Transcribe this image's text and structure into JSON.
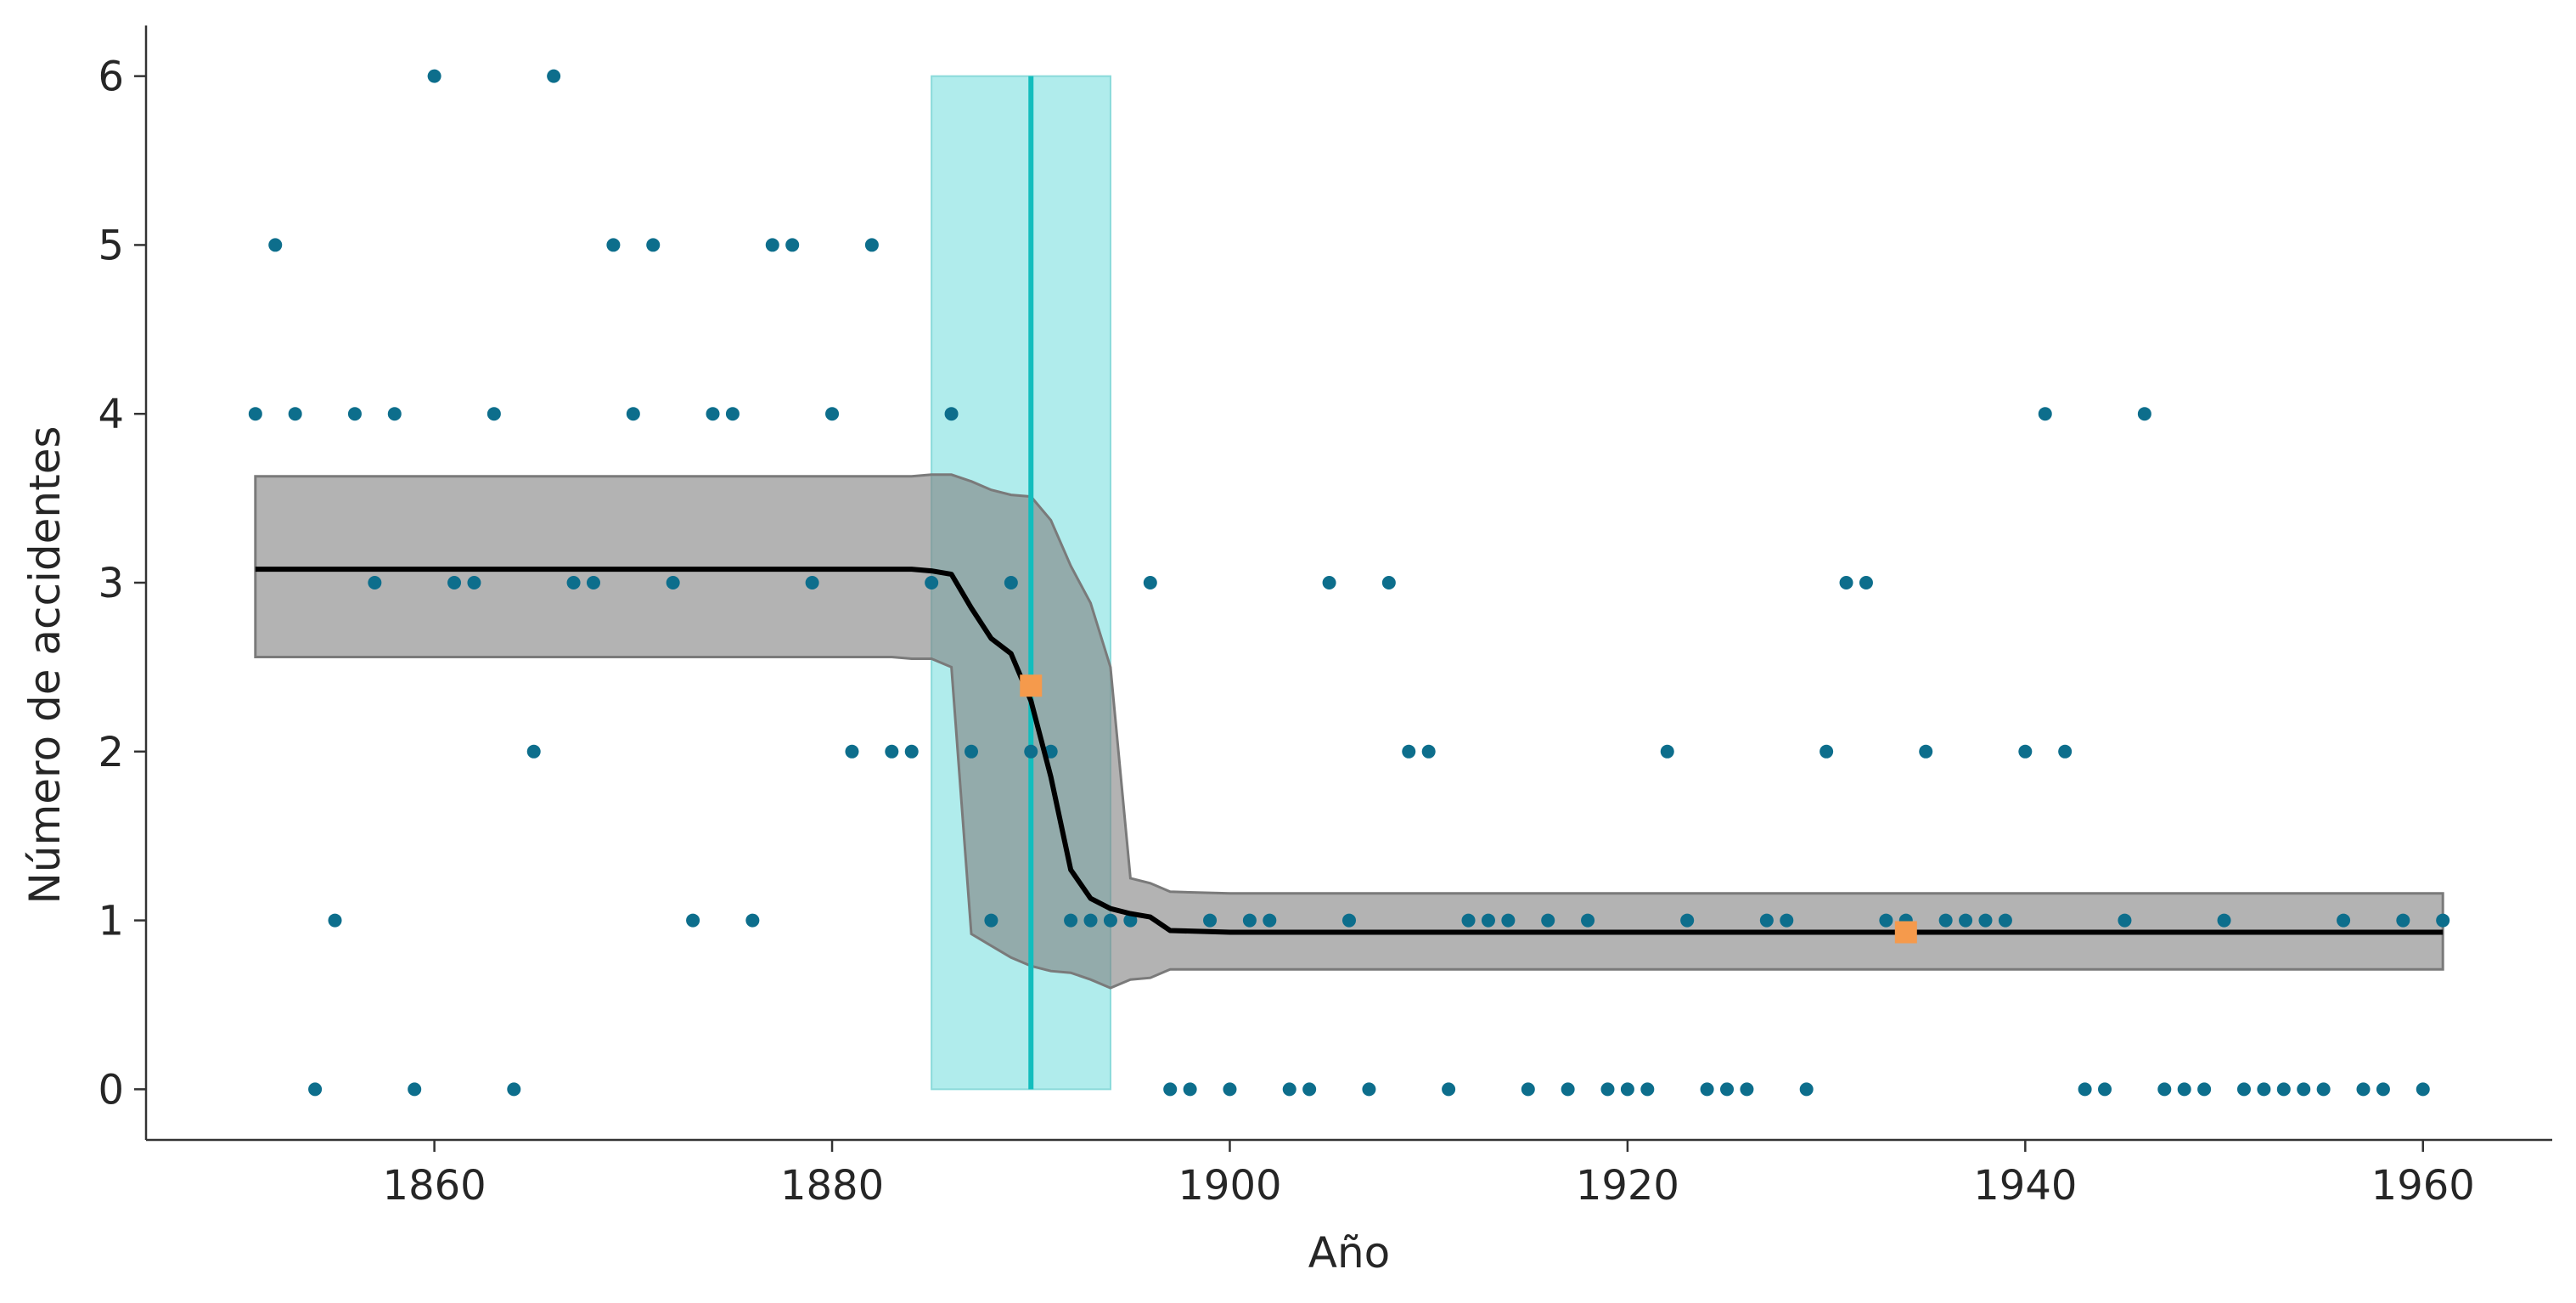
{
  "chart_data": {
    "type": "scatter",
    "title": "",
    "xlabel": "Año",
    "ylabel": "Número de accidentes",
    "xlim": [
      1845.5,
      1966.5
    ],
    "ylim": [
      -0.3,
      6.3
    ],
    "xticks": [
      1860,
      1880,
      1900,
      1920,
      1940,
      1960
    ],
    "yticks": [
      0,
      1,
      2,
      3,
      4,
      5,
      6
    ],
    "grid": false,
    "legend": "none",
    "colors": {
      "points": "#0d6e8c",
      "mean_line": "#000000",
      "band": "#b3b3b3",
      "band_edge": "#7a7a7a",
      "switch_region": "#b0ecec",
      "switch_line": "#12bdbd",
      "markers": "#f59a4c"
    },
    "points": {
      "x": [
        1851,
        1852,
        1853,
        1854,
        1855,
        1856,
        1857,
        1858,
        1859,
        1860,
        1861,
        1862,
        1863,
        1864,
        1865,
        1866,
        1867,
        1868,
        1869,
        1870,
        1871,
        1872,
        1873,
        1874,
        1875,
        1876,
        1877,
        1878,
        1879,
        1880,
        1881,
        1882,
        1883,
        1884,
        1885,
        1886,
        1887,
        1888,
        1889,
        1890,
        1891,
        1892,
        1893,
        1894,
        1895,
        1896,
        1897,
        1898,
        1899,
        1900,
        1901,
        1902,
        1903,
        1904,
        1905,
        1906,
        1907,
        1908,
        1909,
        1910,
        1911,
        1912,
        1913,
        1914,
        1915,
        1916,
        1917,
        1918,
        1919,
        1920,
        1921,
        1922,
        1923,
        1924,
        1925,
        1926,
        1927,
        1928,
        1929,
        1930,
        1931,
        1932,
        1933,
        1934,
        1935,
        1936,
        1937,
        1938,
        1939,
        1940,
        1941,
        1942,
        1943,
        1944,
        1945,
        1946,
        1947,
        1948,
        1949,
        1950,
        1951,
        1952,
        1953,
        1954,
        1955,
        1956,
        1957,
        1958,
        1959,
        1960,
        1961
      ],
      "y": [
        4,
        5,
        4,
        0,
        1,
        4,
        3,
        4,
        0,
        6,
        3,
        3,
        4,
        0,
        2,
        6,
        3,
        3,
        5,
        4,
        5,
        3,
        1,
        4,
        4,
        1,
        5,
        5,
        3,
        4,
        2,
        5,
        2,
        2,
        3,
        4,
        2,
        1,
        3,
        2,
        2,
        1,
        1,
        1,
        1,
        3,
        0,
        0,
        1,
        0,
        1,
        1,
        0,
        0,
        3,
        1,
        0,
        3,
        2,
        2,
        0,
        1,
        1,
        1,
        0,
        1,
        0,
        1,
        0,
        0,
        0,
        2,
        1,
        0,
        0,
        0,
        1,
        1,
        0,
        2,
        3,
        3,
        1,
        1,
        2,
        1,
        1,
        1,
        1,
        2,
        4,
        2,
        0,
        0,
        1,
        4,
        0,
        0,
        0,
        1,
        0,
        0,
        0,
        0,
        0,
        1,
        0,
        0,
        1,
        0,
        1
      ]
    },
    "mean_line": {
      "x": [
        1851,
        1860,
        1870,
        1880,
        1883,
        1884,
        1885,
        1886,
        1887,
        1888,
        1889,
        1890,
        1891,
        1892,
        1893,
        1894,
        1895,
        1896,
        1897,
        1900,
        1920,
        1940,
        1961
      ],
      "y": [
        3.08,
        3.08,
        3.08,
        3.08,
        3.08,
        3.08,
        3.07,
        3.05,
        2.85,
        2.67,
        2.58,
        2.3,
        1.85,
        1.3,
        1.13,
        1.07,
        1.04,
        1.02,
        0.94,
        0.93,
        0.93,
        0.93,
        0.93
      ]
    },
    "band": {
      "x": [
        1851,
        1860,
        1870,
        1880,
        1883,
        1884,
        1885,
        1886,
        1887,
        1888,
        1889,
        1890,
        1891,
        1892,
        1893,
        1894,
        1895,
        1896,
        1897,
        1900,
        1920,
        1940,
        1961
      ],
      "lower": [
        2.56,
        2.56,
        2.56,
        2.56,
        2.56,
        2.55,
        2.55,
        2.5,
        0.92,
        0.85,
        0.78,
        0.73,
        0.7,
        0.69,
        0.65,
        0.6,
        0.65,
        0.66,
        0.71,
        0.71,
        0.71,
        0.71,
        0.71
      ],
      "upper": [
        3.63,
        3.63,
        3.63,
        3.63,
        3.63,
        3.63,
        3.64,
        3.64,
        3.6,
        3.55,
        3.52,
        3.51,
        3.37,
        3.1,
        2.88,
        2.5,
        1.25,
        1.22,
        1.17,
        1.16,
        1.16,
        1.16,
        1.16
      ]
    },
    "switch_region": {
      "x_start": 1885,
      "x_end": 1894,
      "y_min": 0,
      "y_max": 6
    },
    "switch_line": {
      "x": 1890
    },
    "markers": [
      {
        "x": 1890,
        "y": 2.39
      },
      {
        "x": 1934,
        "y": 0.93
      }
    ]
  }
}
